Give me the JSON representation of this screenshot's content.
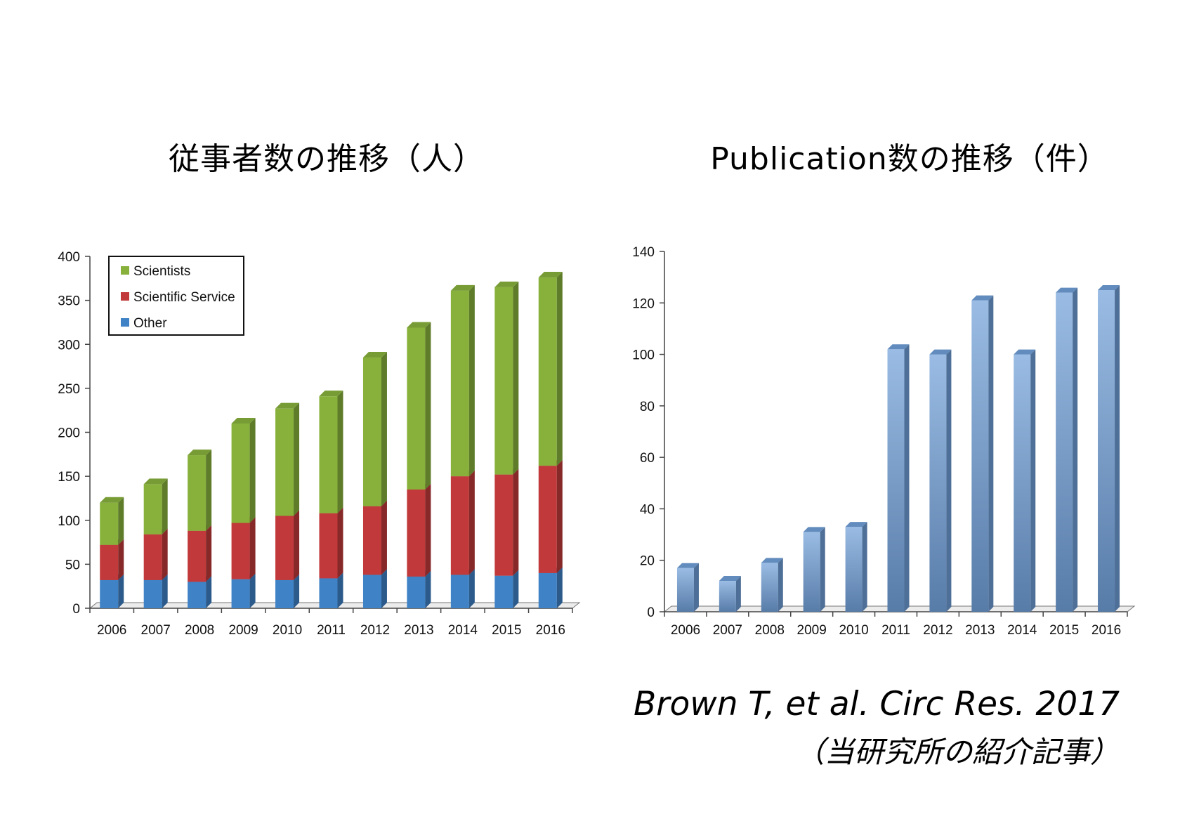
{
  "titles": {
    "left": "従事者数の推移（人）",
    "right": "Publication数の推移（件）"
  },
  "citation": {
    "line1": "Brown T, et al. Circ Res. 2017",
    "line2": "（当研究所の紹介記事）"
  },
  "colors": {
    "scientists": "#88b13c",
    "scientific_service": "#c1393a",
    "other": "#3f82c6",
    "publications": "#6f9fd8"
  },
  "chart_data": [
    {
      "type": "bar",
      "stacked": true,
      "categories": [
        "2006",
        "2007",
        "2008",
        "2009",
        "2010",
        "2011",
        "2012",
        "2013",
        "2014",
        "2015",
        "2016"
      ],
      "series": [
        {
          "name": "Other",
          "values": [
            32,
            32,
            30,
            33,
            32,
            34,
            38,
            36,
            38,
            37,
            40
          ]
        },
        {
          "name": "Scientific Service",
          "values": [
            40,
            52,
            58,
            64,
            73,
            74,
            78,
            99,
            112,
            115,
            122
          ]
        },
        {
          "name": "Scientists",
          "values": [
            48,
            57,
            86,
            113,
            122,
            133,
            169,
            184,
            211,
            213,
            214
          ]
        }
      ],
      "ylim": [
        0,
        400
      ],
      "yticks": [
        "0",
        "50",
        "100",
        "150",
        "200",
        "250",
        "300",
        "350",
        "400"
      ],
      "legend": "top-left",
      "grid": false
    },
    {
      "type": "bar",
      "categories": [
        "2006",
        "2007",
        "2008",
        "2009",
        "2010",
        "2011",
        "2012",
        "2013",
        "2014",
        "2015",
        "2016"
      ],
      "values": [
        17,
        12,
        19,
        31,
        33,
        102,
        100,
        121,
        100,
        124,
        125
      ],
      "ylim": [
        0,
        140
      ],
      "yticks": [
        "0",
        "20",
        "40",
        "60",
        "80",
        "100",
        "120",
        "140"
      ],
      "grid": false
    }
  ]
}
